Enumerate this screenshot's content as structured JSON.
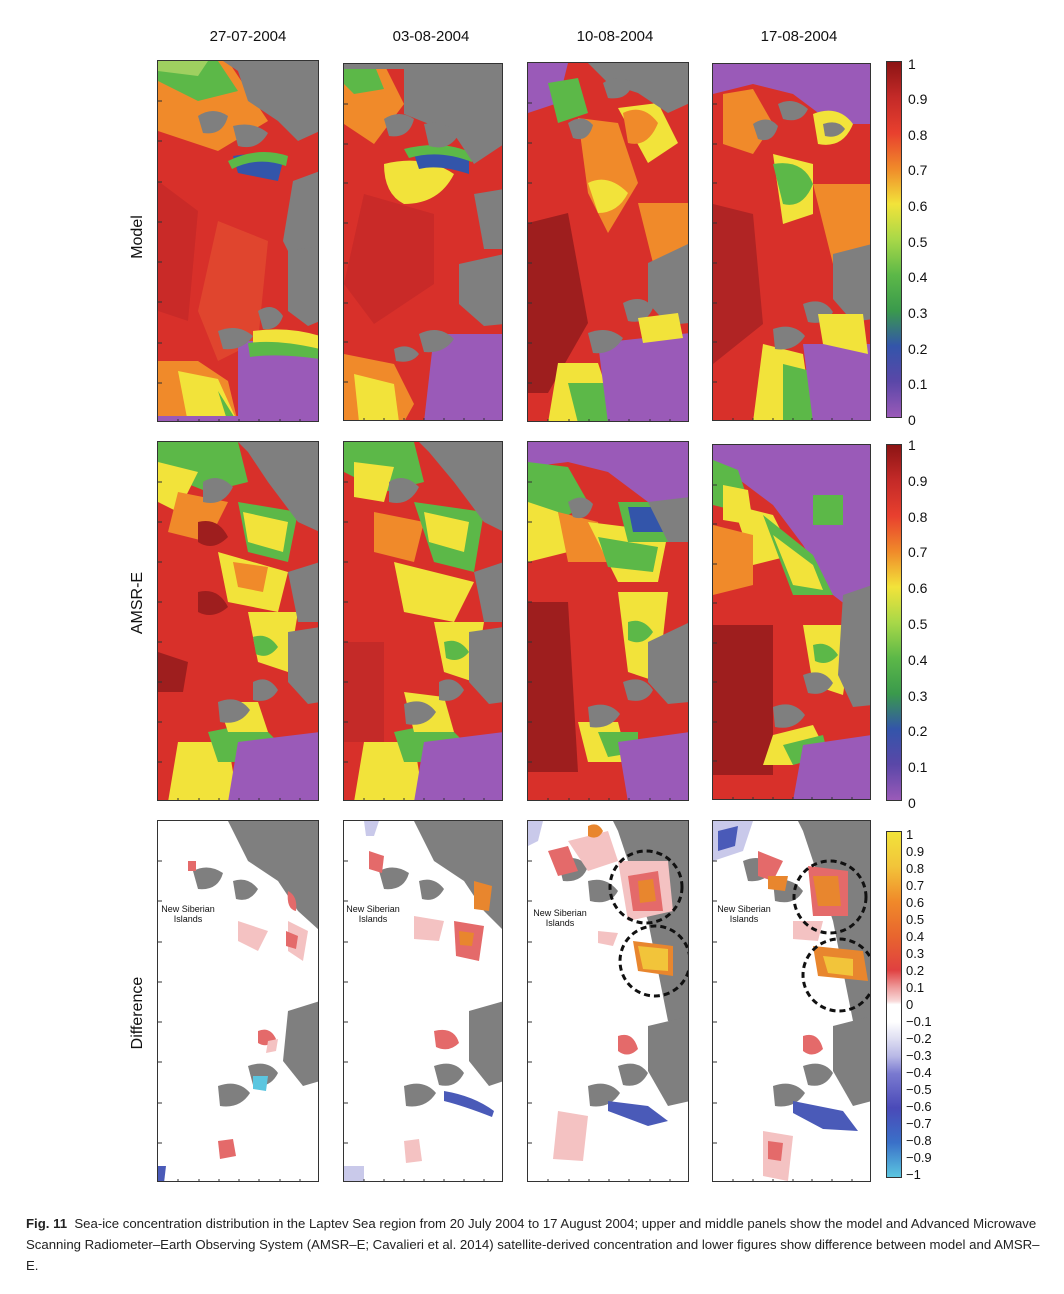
{
  "columns": [
    "27-07-2004",
    "03-08-2004",
    "10-08-2004",
    "17-08-2004"
  ],
  "rows": [
    "Model",
    "AMSR-E",
    "Difference"
  ],
  "colorbar_concentration": [
    "1",
    "0.9",
    "0.8",
    "0.7",
    "0.6",
    "0.5",
    "0.4",
    "0.3",
    "0.2",
    "0.1",
    "0"
  ],
  "colorbar_difference": [
    "1",
    "0.9",
    "0.8",
    "0.7",
    "0.6",
    "0.5",
    "0.4",
    "0.3",
    "0.2",
    "0.1",
    "0",
    "−0.1",
    "−0.2",
    "−0.3",
    "−0.4",
    "−0.5",
    "−0.6",
    "−0.7",
    "−0.8",
    "−0.9",
    "−1"
  ],
  "annotation": {
    "island_line1": "New Siberian",
    "island_line2": "Islands"
  },
  "caption": {
    "label": "Fig. 11",
    "text": "Sea-ice concentration distribution in the Laptev Sea region from 20 July 2004 to 17 August 2004; upper and middle panels show the model and Advanced Microwave Scanning Radiometer–Earth Observing System (AMSR–E; Cavalieri et al. 2014) satellite-derived concentration and lower figures show difference between model and AMSR–E."
  },
  "colors": {
    "land": "#7f7f7f",
    "open_water": "#9a5ab8",
    "high_ice": "#d8302a",
    "very_high_ice": "#9e1e1e",
    "mid_ice": "#f08a2a",
    "low_ice": "#f2e33a",
    "green_ice": "#5cb848",
    "blue_ice": "#3355aa",
    "diff_pos_strong": "#e8862e",
    "diff_pos": "#e46a6a",
    "diff_pos_weak": "#f4c2c2",
    "diff_neg": "#4a5ab8",
    "diff_neg_weak": "#c9c9ea",
    "diff_neg_cyan": "#5bc6e0"
  }
}
